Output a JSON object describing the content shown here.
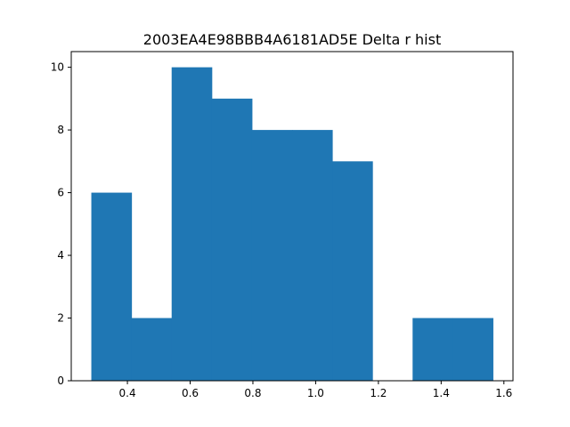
{
  "chart_data": {
    "type": "bar",
    "title": "2003EA4E98BBB4A6181AD5E Delta r hist",
    "xlabel": "",
    "ylabel": "",
    "bin_edges": [
      0.285,
      0.413,
      0.541,
      0.669,
      0.797,
      0.925,
      1.053,
      1.181,
      1.309,
      1.437,
      1.565
    ],
    "values": [
      6,
      2,
      10,
      9,
      8,
      8,
      7,
      0,
      2,
      2
    ],
    "xlim": [
      0.221,
      1.629
    ],
    "ylim": [
      0,
      10.5
    ],
    "xticks": [
      0.4,
      0.6,
      0.8,
      1.0,
      1.2,
      1.4,
      1.6
    ],
    "xtick_labels": [
      "0.4",
      "0.6",
      "0.8",
      "1.0",
      "1.2",
      "1.4",
      "1.6"
    ],
    "yticks": [
      0,
      2,
      4,
      6,
      8,
      10
    ],
    "ytick_labels": [
      "0",
      "2",
      "4",
      "6",
      "8",
      "10"
    ],
    "bar_color": "#1f77b4",
    "grid": false,
    "legend": "none"
  }
}
